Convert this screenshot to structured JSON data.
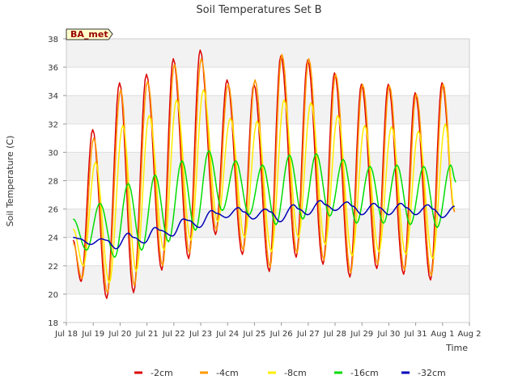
{
  "chart_data": {
    "type": "line",
    "title": "Soil Temperatures Set B",
    "xlabel": "Time",
    "ylabel": "Soil Temperature (C)",
    "ylim": [
      18,
      38
    ],
    "yticks": [
      18,
      20,
      22,
      24,
      26,
      28,
      30,
      32,
      34,
      36,
      38
    ],
    "xlim": [
      18,
      33
    ],
    "xticks": [
      {
        "v": 18,
        "label": "Jul 18"
      },
      {
        "v": 19,
        "label": "Jul 19"
      },
      {
        "v": 20,
        "label": "Jul 20"
      },
      {
        "v": 21,
        "label": "Jul 21"
      },
      {
        "v": 22,
        "label": "Jul 22"
      },
      {
        "v": 23,
        "label": "Jul 23"
      },
      {
        "v": 24,
        "label": "Jul 24"
      },
      {
        "v": 25,
        "label": "Jul 25"
      },
      {
        "v": 26,
        "label": "Jul 26"
      },
      {
        "v": 27,
        "label": "Jul 27"
      },
      {
        "v": 28,
        "label": "Jul 28"
      },
      {
        "v": 29,
        "label": "Jul 29"
      },
      {
        "v": 30,
        "label": "Jul 30"
      },
      {
        "v": 31,
        "label": "Jul 31"
      },
      {
        "v": 32,
        "label": "Aug 1"
      },
      {
        "v": 33,
        "label": "Aug 2"
      }
    ],
    "grid": true,
    "legend": "bottom",
    "annotation": "BA_met",
    "series": [
      {
        "name": "-2cm",
        "color": "#dd0000",
        "points": [
          [
            18.25,
            23.8
          ],
          [
            18.55,
            20.9
          ],
          [
            18.98,
            31.6
          ],
          [
            19.5,
            19.7
          ],
          [
            19.98,
            34.9
          ],
          [
            20.5,
            20.1
          ],
          [
            20.98,
            35.5
          ],
          [
            21.55,
            21.7
          ],
          [
            21.98,
            36.6
          ],
          [
            22.55,
            22.5
          ],
          [
            22.98,
            37.2
          ],
          [
            23.55,
            24.2
          ],
          [
            23.98,
            35.1
          ],
          [
            24.55,
            22.8
          ],
          [
            24.98,
            34.8
          ],
          [
            25.55,
            21.6
          ],
          [
            25.98,
            36.8
          ],
          [
            26.55,
            22.6
          ],
          [
            26.98,
            36.5
          ],
          [
            27.55,
            22.1
          ],
          [
            27.98,
            35.6
          ],
          [
            28.55,
            21.2
          ],
          [
            28.98,
            34.8
          ],
          [
            29.55,
            21.8
          ],
          [
            29.98,
            34.8
          ],
          [
            30.55,
            21.4
          ],
          [
            30.98,
            34.2
          ],
          [
            31.55,
            21.0
          ],
          [
            31.98,
            34.9
          ],
          [
            32.45,
            25.8
          ]
        ]
      },
      {
        "name": "-4cm",
        "color": "#ff9900",
        "points": [
          [
            18.25,
            23.6
          ],
          [
            18.58,
            21.1
          ],
          [
            19.02,
            31.0
          ],
          [
            19.53,
            20.1
          ],
          [
            20.02,
            34.4
          ],
          [
            20.53,
            20.6
          ],
          [
            21.02,
            35.0
          ],
          [
            21.58,
            22.0
          ],
          [
            22.02,
            36.2
          ],
          [
            22.58,
            22.9
          ],
          [
            23.02,
            36.6
          ],
          [
            23.58,
            24.5
          ],
          [
            24.02,
            34.8
          ],
          [
            24.58,
            23.1
          ],
          [
            25.02,
            35.1
          ],
          [
            25.58,
            21.9
          ],
          [
            26.02,
            36.9
          ],
          [
            26.58,
            22.9
          ],
          [
            27.02,
            36.6
          ],
          [
            27.58,
            22.4
          ],
          [
            28.02,
            35.5
          ],
          [
            28.58,
            21.5
          ],
          [
            29.02,
            34.8
          ],
          [
            29.58,
            22.1
          ],
          [
            30.02,
            34.7
          ],
          [
            30.58,
            21.7
          ],
          [
            31.02,
            34.1
          ],
          [
            31.58,
            21.3
          ],
          [
            32.02,
            34.8
          ],
          [
            32.45,
            25.8
          ]
        ]
      },
      {
        "name": "-8cm",
        "color": "#ffee00",
        "points": [
          [
            18.25,
            24.6
          ],
          [
            18.63,
            22.0
          ],
          [
            19.08,
            29.3
          ],
          [
            19.6,
            20.8
          ],
          [
            20.1,
            31.9
          ],
          [
            20.6,
            21.6
          ],
          [
            21.08,
            32.6
          ],
          [
            21.63,
            23.1
          ],
          [
            22.1,
            33.7
          ],
          [
            22.63,
            23.8
          ],
          [
            23.1,
            34.4
          ],
          [
            23.63,
            25.1
          ],
          [
            24.1,
            32.4
          ],
          [
            24.63,
            24.0
          ],
          [
            25.1,
            32.2
          ],
          [
            25.63,
            23.0
          ],
          [
            26.1,
            33.7
          ],
          [
            26.63,
            24.0
          ],
          [
            27.1,
            33.5
          ],
          [
            27.63,
            23.5
          ],
          [
            28.1,
            32.6
          ],
          [
            28.63,
            22.7
          ],
          [
            29.1,
            31.9
          ],
          [
            29.63,
            23.0
          ],
          [
            30.1,
            31.8
          ],
          [
            30.63,
            22.8
          ],
          [
            31.1,
            31.5
          ],
          [
            31.63,
            22.5
          ],
          [
            32.1,
            32.0
          ],
          [
            32.45,
            26.0
          ]
        ]
      },
      {
        "name": "-16cm",
        "color": "#00dd00",
        "points": [
          [
            18.25,
            25.3
          ],
          [
            18.75,
            23.1
          ],
          [
            19.25,
            26.4
          ],
          [
            19.8,
            22.6
          ],
          [
            20.3,
            27.8
          ],
          [
            20.8,
            23.1
          ],
          [
            21.3,
            28.4
          ],
          [
            21.8,
            23.7
          ],
          [
            22.3,
            29.4
          ],
          [
            22.8,
            24.5
          ],
          [
            23.3,
            30.1
          ],
          [
            23.8,
            25.9
          ],
          [
            24.3,
            29.4
          ],
          [
            24.8,
            25.6
          ],
          [
            25.3,
            29.1
          ],
          [
            25.8,
            24.9
          ],
          [
            26.3,
            29.8
          ],
          [
            26.8,
            25.3
          ],
          [
            27.3,
            29.9
          ],
          [
            27.8,
            25.5
          ],
          [
            28.3,
            29.5
          ],
          [
            28.8,
            25.0
          ],
          [
            29.3,
            29.0
          ],
          [
            29.8,
            25.0
          ],
          [
            30.3,
            29.1
          ],
          [
            30.8,
            24.9
          ],
          [
            31.3,
            29.0
          ],
          [
            31.8,
            24.7
          ],
          [
            32.3,
            29.1
          ],
          [
            32.5,
            27.9
          ]
        ]
      },
      {
        "name": "-32cm",
        "color": "#0000bb",
        "points": [
          [
            18.25,
            24.0
          ],
          [
            18.5,
            23.9
          ],
          [
            18.9,
            23.5
          ],
          [
            19.3,
            23.9
          ],
          [
            19.5,
            23.8
          ],
          [
            19.85,
            23.2
          ],
          [
            20.3,
            24.3
          ],
          [
            20.5,
            24.0
          ],
          [
            20.9,
            23.6
          ],
          [
            21.3,
            24.7
          ],
          [
            21.5,
            24.5
          ],
          [
            21.95,
            24.1
          ],
          [
            22.35,
            25.3
          ],
          [
            22.55,
            25.2
          ],
          [
            22.95,
            24.7
          ],
          [
            23.4,
            25.9
          ],
          [
            23.6,
            25.7
          ],
          [
            23.95,
            25.4
          ],
          [
            24.4,
            26.1
          ],
          [
            24.6,
            25.8
          ],
          [
            24.95,
            25.3
          ],
          [
            25.4,
            26.0
          ],
          [
            25.6,
            25.8
          ],
          [
            25.95,
            25.1
          ],
          [
            26.45,
            26.3
          ],
          [
            26.65,
            26.0
          ],
          [
            26.98,
            25.6
          ],
          [
            27.45,
            26.6
          ],
          [
            27.65,
            26.3
          ],
          [
            28.0,
            25.9
          ],
          [
            28.45,
            26.5
          ],
          [
            28.65,
            26.2
          ],
          [
            29.0,
            25.6
          ],
          [
            29.45,
            26.4
          ],
          [
            29.65,
            26.1
          ],
          [
            30.0,
            25.6
          ],
          [
            30.45,
            26.4
          ],
          [
            30.65,
            26.1
          ],
          [
            31.0,
            25.6
          ],
          [
            31.45,
            26.3
          ],
          [
            31.65,
            26.0
          ],
          [
            32.0,
            25.4
          ],
          [
            32.45,
            26.2
          ]
        ]
      }
    ]
  }
}
